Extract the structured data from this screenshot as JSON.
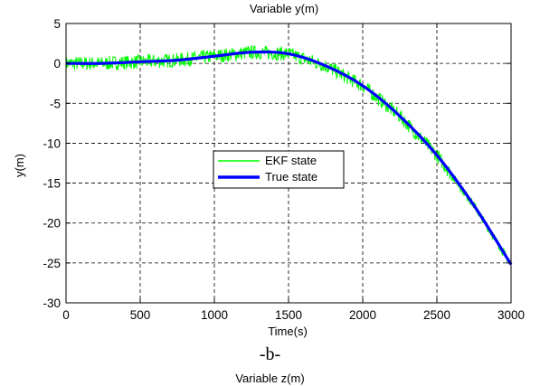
{
  "chart_data": {
    "type": "line",
    "title": "Variable y(m)",
    "xlabel": "Time(s)",
    "ylabel": "y(m)",
    "xlim": [
      0,
      3000
    ],
    "ylim": [
      -30,
      5
    ],
    "xticks": [
      0,
      500,
      1000,
      1500,
      2000,
      2500,
      3000
    ],
    "yticks": [
      5,
      0,
      -5,
      -10,
      -15,
      -20,
      -25,
      -30
    ],
    "grid": true,
    "grid_style": "dashed",
    "legend_position": "center-left",
    "series": [
      {
        "name": "EKF state",
        "color": "#00ff00",
        "noise_amplitude": 0.9,
        "x": [
          0,
          250,
          500,
          750,
          1000,
          1250,
          1500,
          1750,
          2000,
          2250,
          2500,
          2750,
          3000
        ],
        "y": [
          0.0,
          0.0,
          0.2,
          0.4,
          0.9,
          1.4,
          1.2,
          -0.3,
          -2.8,
          -6.6,
          -11.5,
          -17.8,
          -25.2
        ]
      },
      {
        "name": "True state",
        "color": "#0000ff",
        "x": [
          0,
          250,
          500,
          750,
          1000,
          1250,
          1500,
          1750,
          2000,
          2250,
          2500,
          2750,
          3000
        ],
        "y": [
          0.0,
          0.0,
          0.2,
          0.4,
          0.9,
          1.4,
          1.2,
          -0.3,
          -2.8,
          -6.6,
          -11.5,
          -17.8,
          -25.2
        ]
      }
    ]
  },
  "caption": {
    "panel_label": "-b-",
    "next_title": "Variable z(m)"
  }
}
